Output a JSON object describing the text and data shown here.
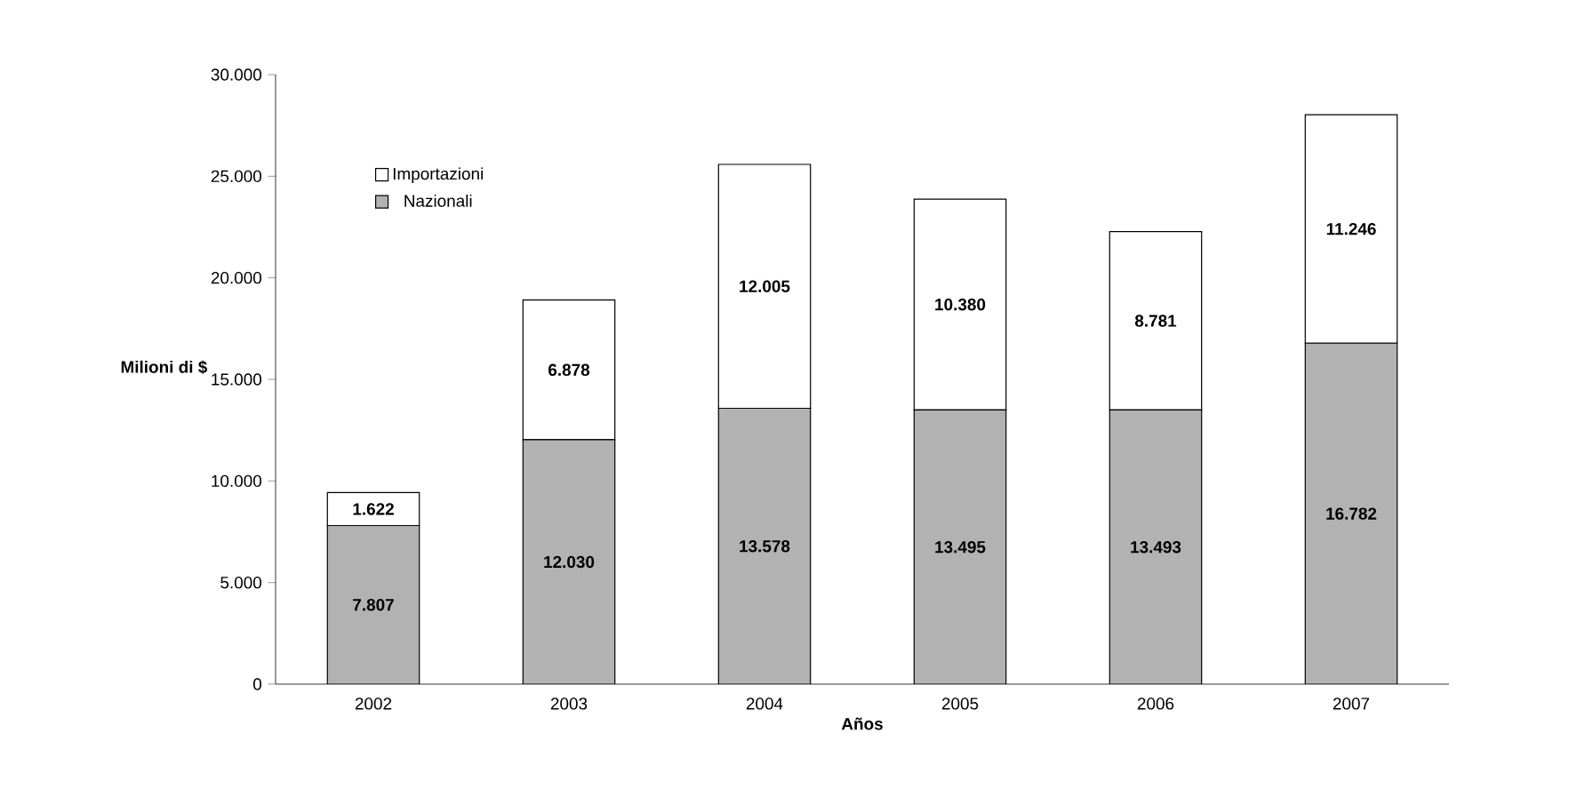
{
  "chart_data": {
    "type": "bar",
    "stacked": true,
    "xlabel": "Años",
    "ylabel": "Milioni di $",
    "categories": [
      "2002",
      "2003",
      "2004",
      "2005",
      "2006",
      "2007"
    ],
    "series": [
      {
        "name": "Nazionali",
        "color": "#b2b2b2",
        "values": [
          7807,
          12030,
          13578,
          13495,
          13493,
          16782
        ],
        "value_labels": [
          "7.807",
          "12.030",
          "13.578",
          "13.495",
          "13.493",
          "16.782"
        ]
      },
      {
        "name": "Importazioni",
        "color": "#ffffff",
        "values": [
          1622,
          6878,
          12005,
          10380,
          8781,
          11246
        ],
        "value_labels": [
          "1.622",
          "6.878",
          "12.005",
          "10.380",
          "8.781",
          "11.246"
        ]
      }
    ],
    "ylim": [
      0,
      30000
    ],
    "yticks": [
      {
        "value": 0,
        "label": "0"
      },
      {
        "value": 5000,
        "label": "5.000"
      },
      {
        "value": 10000,
        "label": "10.000"
      },
      {
        "value": 15000,
        "label": "15.000"
      },
      {
        "value": 20000,
        "label": "20.000"
      },
      {
        "value": 25000,
        "label": "25.000"
      },
      {
        "value": 30000,
        "label": "30.000"
      }
    ],
    "grid": false,
    "legend": "top left"
  }
}
